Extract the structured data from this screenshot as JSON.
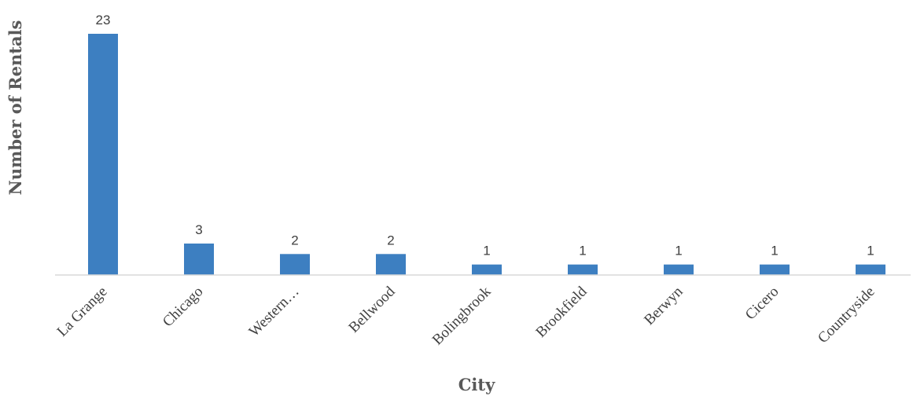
{
  "chart_data": {
    "type": "bar",
    "title": "",
    "xlabel": "City",
    "ylabel": "Number of Rentals",
    "categories": [
      "La Grange",
      "Chicago",
      "Western…",
      "Bellwood",
      "Bolingbrook",
      "Brookfield",
      "Berwyn",
      "Cicero",
      "Countryside"
    ],
    "values": [
      23,
      3,
      2,
      2,
      1,
      1,
      1,
      1,
      1
    ],
    "data_labels": [
      "23",
      "3",
      "2",
      "2",
      "1",
      "1",
      "1",
      "1",
      "1"
    ],
    "ylim": [
      0,
      23
    ],
    "grid": false,
    "legend": "none",
    "bar_color": "#3d7fc1",
    "axis_color": "#d9d9d9"
  }
}
